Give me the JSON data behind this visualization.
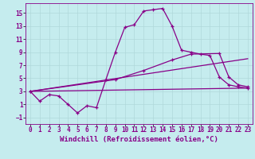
{
  "xlabel": "Windchill (Refroidissement éolien,°C)",
  "background_color": "#c5ecee",
  "line_color": "#880088",
  "xlim": [
    -0.5,
    23.5
  ],
  "ylim": [
    -2.0,
    16.5
  ],
  "xticks": [
    0,
    1,
    2,
    3,
    4,
    5,
    6,
    7,
    8,
    9,
    10,
    11,
    12,
    13,
    14,
    15,
    16,
    17,
    18,
    19,
    20,
    21,
    22,
    23
  ],
  "yticks": [
    -1,
    1,
    3,
    5,
    7,
    9,
    11,
    13,
    15
  ],
  "gridcolor": "#b0d8da",
  "xlabel_fontsize": 6.5,
  "tick_fontsize": 5.5,
  "series1_x": [
    0,
    1,
    2,
    3,
    4,
    5,
    6,
    7,
    8,
    9,
    10,
    11,
    12,
    13,
    14,
    15,
    16,
    17,
    18,
    19,
    20,
    21,
    22,
    23
  ],
  "series1_y": [
    3.0,
    1.5,
    2.5,
    2.3,
    1.0,
    -0.3,
    0.8,
    0.5,
    4.8,
    9.0,
    12.8,
    13.2,
    15.3,
    15.5,
    15.7,
    13.0,
    9.3,
    9.0,
    8.7,
    8.5,
    5.2,
    4.0,
    3.7,
    3.5
  ],
  "series2_x": [
    0,
    9,
    12,
    15,
    17,
    20,
    21,
    22,
    23
  ],
  "series2_y": [
    3.0,
    4.8,
    6.2,
    7.8,
    8.7,
    8.8,
    5.2,
    4.0,
    3.7
  ],
  "series3_x": [
    0,
    23
  ],
  "series3_y": [
    3.0,
    8.0
  ],
  "series4_x": [
    0,
    23
  ],
  "series4_y": [
    3.0,
    3.5
  ]
}
